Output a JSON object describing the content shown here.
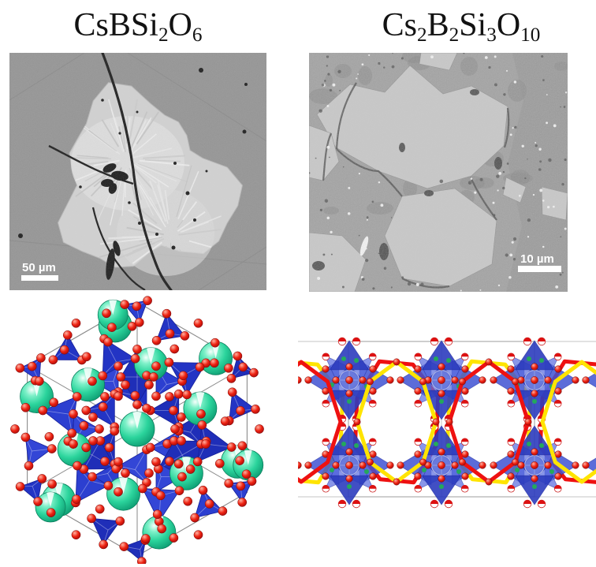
{
  "figure": {
    "background": "#ffffff",
    "panels": {
      "top_left": {
        "title": {
          "plain": "CsBSi2O6",
          "parts": [
            {
              "t": "CsBSi"
            },
            {
              "t": "2",
              "sub": true
            },
            {
              "t": "O"
            },
            {
              "t": "6",
              "sub": true
            }
          ]
        },
        "scale_bar": {
          "label": "50 µm"
        },
        "colors": {
          "background": "#8f8f8f",
          "crystal": "#d3d3d3",
          "crystal_bright": "#e6e6e6",
          "cracks": "#0c0c0c",
          "scale_bar": "#ffffff"
        }
      },
      "top_right": {
        "title": {
          "plain": "Cs2B2Si3O10",
          "parts": [
            {
              "t": "Cs"
            },
            {
              "t": "2",
              "sub": true
            },
            {
              "t": "B"
            },
            {
              "t": "2",
              "sub": true
            },
            {
              "t": "Si"
            },
            {
              "t": "3",
              "sub": true
            },
            {
              "t": "O"
            },
            {
              "t": "10",
              "sub": true
            }
          ]
        },
        "scale_bar": {
          "label": "10 µm"
        },
        "colors": {
          "matrix": "#999999",
          "grains": "#c9c9c9",
          "boundaries": "#383838",
          "specks": "#ffffff",
          "scale_bar": "#ffffff"
        }
      },
      "bottom_left": {
        "colors": {
          "tetrahedra": "#2c3cc8",
          "oxygen": "#df1414",
          "cesium": "#35dfa6",
          "cell_edge": "#8a8a8a"
        }
      },
      "bottom_right": {
        "colors": {
          "polyhedra": "#3c50cc",
          "oxygen": "#df1414",
          "mixed_atom": "#ffffff",
          "minor_atom_green": "#23a85c",
          "ring_yellow": "#ffe400",
          "ring_red": "#ee1111",
          "cell_edge": "#9c9c9c"
        }
      }
    }
  }
}
